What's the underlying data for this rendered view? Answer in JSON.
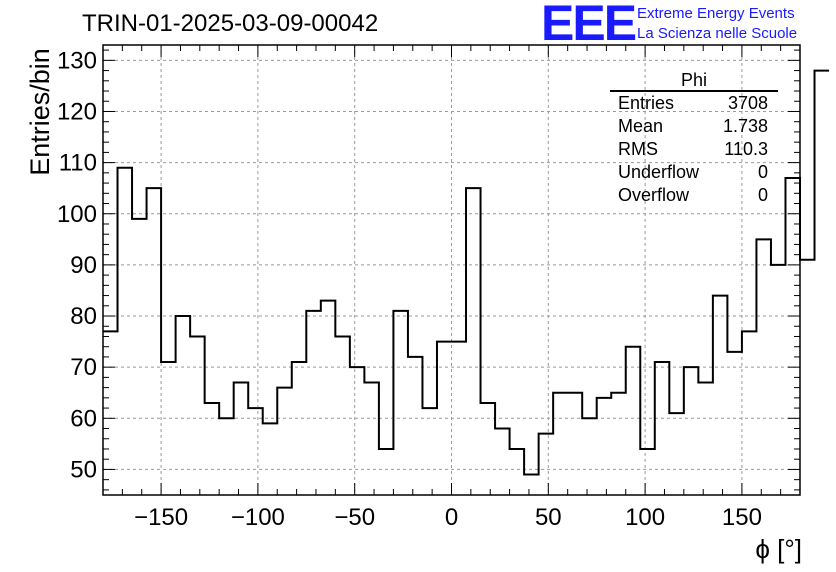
{
  "header": {
    "title": "TRIN-01-2025-03-09-00042",
    "logo": "EEE",
    "logo_line1": "Extreme Energy Events",
    "logo_line2": "La Scienza nelle Scuole"
  },
  "stats": {
    "name": "Phi",
    "rows": [
      {
        "label": "Entries",
        "value": "3708"
      },
      {
        "label": "Mean",
        "value": "1.738"
      },
      {
        "label": "RMS",
        "value": "110.3"
      },
      {
        "label": "Underflow",
        "value": "0"
      },
      {
        "label": "Overflow",
        "value": "0"
      }
    ]
  },
  "colors": {
    "accent": "#1a1aff",
    "line": "#000000",
    "grid": "#9a9a9a"
  },
  "chart_data": {
    "type": "histogram",
    "title": "TRIN-01-2025-03-09-00042",
    "xlabel": "ϕ [°]",
    "ylabel": "Entries/bin",
    "xlim": [
      -180,
      180
    ],
    "ylim": [
      45,
      133
    ],
    "grid": true,
    "x_ticks": [
      -150,
      -100,
      -50,
      0,
      50,
      100,
      150
    ],
    "x_tick_labels": [
      "−150",
      "−100",
      "−50",
      "0",
      "50",
      "100",
      "150"
    ],
    "y_ticks": [
      50,
      60,
      70,
      80,
      90,
      100,
      110,
      120,
      130
    ],
    "bin_edges_start": -180,
    "bin_width": 7.5,
    "values": [
      77,
      109,
      99,
      105,
      71,
      80,
      76,
      63,
      60,
      67,
      62,
      59,
      66,
      71,
      81,
      83,
      76,
      70,
      67,
      54,
      81,
      72,
      62,
      75,
      75,
      105,
      63,
      58,
      54,
      49,
      57,
      65,
      65,
      60,
      64,
      65,
      74,
      54,
      71,
      61,
      70,
      67,
      84,
      73,
      77,
      95,
      90,
      107,
      91,
      128
    ]
  }
}
